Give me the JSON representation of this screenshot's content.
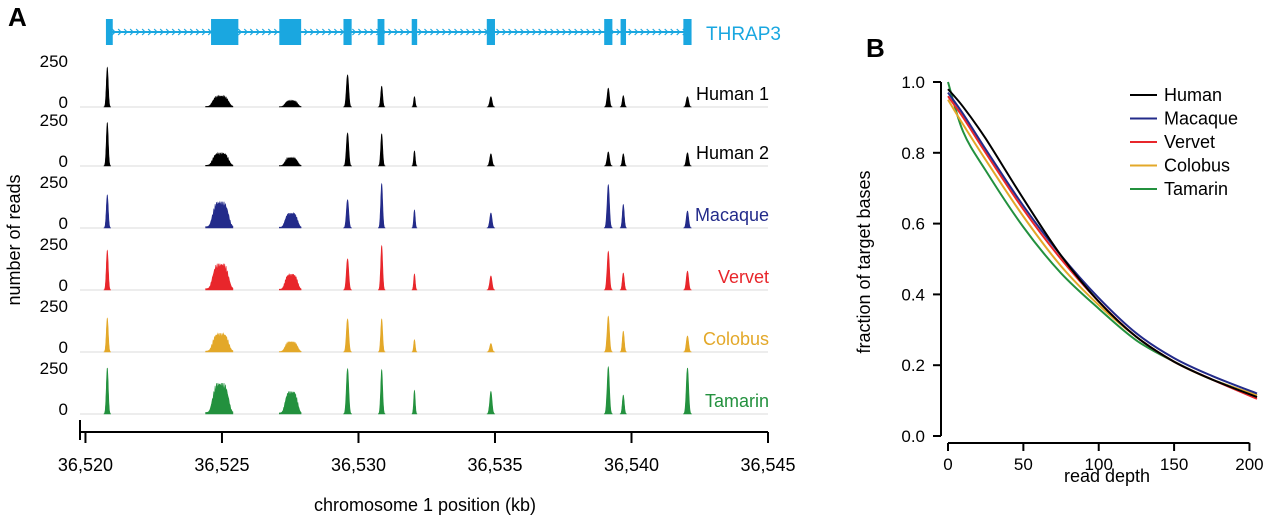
{
  "panel_a": {
    "letter": "A",
    "gene_label": "THRAP3",
    "y_axis_label": "number of reads",
    "y_tick_top": "250",
    "y_tick_bottom": "0",
    "x_axis_label": "chromosome 1 position (kb)",
    "x_ticks": [
      "36,520",
      "36,525",
      "36,530",
      "36,535",
      "36,540",
      "36,545"
    ]
  },
  "panel_b": {
    "letter": "B",
    "y_axis_label": "fraction of target bases",
    "x_axis_label": "read depth",
    "y_ticks": [
      "1.0",
      "0.8",
      "0.6",
      "0.4",
      "0.2",
      "0.0"
    ],
    "x_ticks": [
      "0",
      "50",
      "100",
      "150",
      "200"
    ]
  },
  "colors": {
    "gene": "#1aa7e0",
    "human": "#000000",
    "macaque": "#232b8a",
    "vervet": "#e8262b",
    "colobus": "#e3a829",
    "tamarin": "#23913e"
  },
  "chart_data": [
    {
      "type": "area",
      "title": "",
      "xlabel": "chromosome 1 position (kb)",
      "ylabel": "number of reads",
      "xlim": [
        36519.8,
        36545
      ],
      "ylim": [
        0,
        250
      ],
      "gene": {
        "name": "THRAP3",
        "start": 36520.8,
        "end": 36542.1,
        "exons": [
          {
            "start": 36520.75,
            "end": 36521.0
          },
          {
            "start": 36524.6,
            "end": 36525.6
          },
          {
            "start": 36527.1,
            "end": 36527.9
          },
          {
            "start": 36529.45,
            "end": 36529.75
          },
          {
            "start": 36530.7,
            "end": 36530.95
          },
          {
            "start": 36531.95,
            "end": 36532.15
          },
          {
            "start": 36534.7,
            "end": 36535.0
          },
          {
            "start": 36539.0,
            "end": 36539.3
          },
          {
            "start": 36539.6,
            "end": 36539.8
          },
          {
            "start": 36541.9,
            "end": 36542.2
          }
        ]
      },
      "peak_positions": [
        36520.8,
        36524.9,
        36527.5,
        36529.6,
        36530.85,
        36532.05,
        36534.85,
        36539.15,
        36539.7,
        36542.05
      ],
      "peak_widths": [
        0.25,
        1.0,
        0.8,
        0.3,
        0.25,
        0.2,
        0.3,
        0.3,
        0.25,
        0.3
      ],
      "series": [
        {
          "name": "Human 1",
          "color_key": "human",
          "peaks": [
            210,
            60,
            35,
            170,
            110,
            55,
            55,
            100,
            60,
            55
          ]
        },
        {
          "name": "Human 2",
          "color_key": "human",
          "peaks": [
            230,
            70,
            45,
            175,
            170,
            80,
            65,
            75,
            65,
            70
          ]
        },
        {
          "name": "Macaque",
          "color_key": "macaque",
          "peaks": [
            175,
            140,
            80,
            150,
            235,
            95,
            80,
            230,
            125,
            90
          ]
        },
        {
          "name": "Vervet",
          "color_key": "vervet",
          "peaks": [
            210,
            140,
            85,
            165,
            235,
            85,
            75,
            205,
            90,
            100
          ]
        },
        {
          "name": "Colobus",
          "color_key": "colobus",
          "peaks": [
            180,
            100,
            55,
            175,
            175,
            65,
            45,
            190,
            110,
            85
          ]
        },
        {
          "name": "Tamarin",
          "color_key": "tamarin",
          "peaks": [
            245,
            165,
            120,
            240,
            235,
            125,
            120,
            250,
            100,
            245
          ]
        }
      ]
    },
    {
      "type": "line",
      "title": "",
      "xlabel": "read depth",
      "ylabel": "fraction of target bases",
      "xlim": [
        0,
        205
      ],
      "ylim": [
        0,
        1.0
      ],
      "legend_position": "top-right",
      "series": [
        {
          "name": "Human",
          "color_key": "human",
          "x": [
            0,
            10,
            25,
            50,
            75,
            100,
            125,
            150,
            175,
            205
          ],
          "y": [
            0.98,
            0.93,
            0.84,
            0.67,
            0.51,
            0.38,
            0.28,
            0.21,
            0.16,
            0.11
          ]
        },
        {
          "name": "Macaque",
          "color_key": "macaque",
          "x": [
            0,
            10,
            25,
            50,
            75,
            100,
            125,
            150,
            175,
            205
          ],
          "y": [
            0.97,
            0.91,
            0.81,
            0.65,
            0.51,
            0.39,
            0.29,
            0.22,
            0.17,
            0.12
          ]
        },
        {
          "name": "Vervet",
          "color_key": "vervet",
          "x": [
            0,
            10,
            25,
            50,
            75,
            100,
            125,
            150,
            175,
            205
          ],
          "y": [
            0.96,
            0.9,
            0.8,
            0.64,
            0.5,
            0.38,
            0.28,
            0.21,
            0.16,
            0.105
          ]
        },
        {
          "name": "Colobus",
          "color_key": "colobus",
          "x": [
            0,
            10,
            25,
            50,
            75,
            100,
            125,
            150,
            175,
            205
          ],
          "y": [
            0.95,
            0.88,
            0.78,
            0.62,
            0.48,
            0.37,
            0.28,
            0.21,
            0.16,
            0.115
          ]
        },
        {
          "name": "Tamarin",
          "color_key": "tamarin",
          "x": [
            0,
            10,
            25,
            50,
            75,
            100,
            125,
            150,
            175,
            205
          ],
          "y": [
            1.0,
            0.86,
            0.75,
            0.59,
            0.46,
            0.36,
            0.27,
            0.21,
            0.16,
            0.115
          ]
        }
      ]
    }
  ]
}
